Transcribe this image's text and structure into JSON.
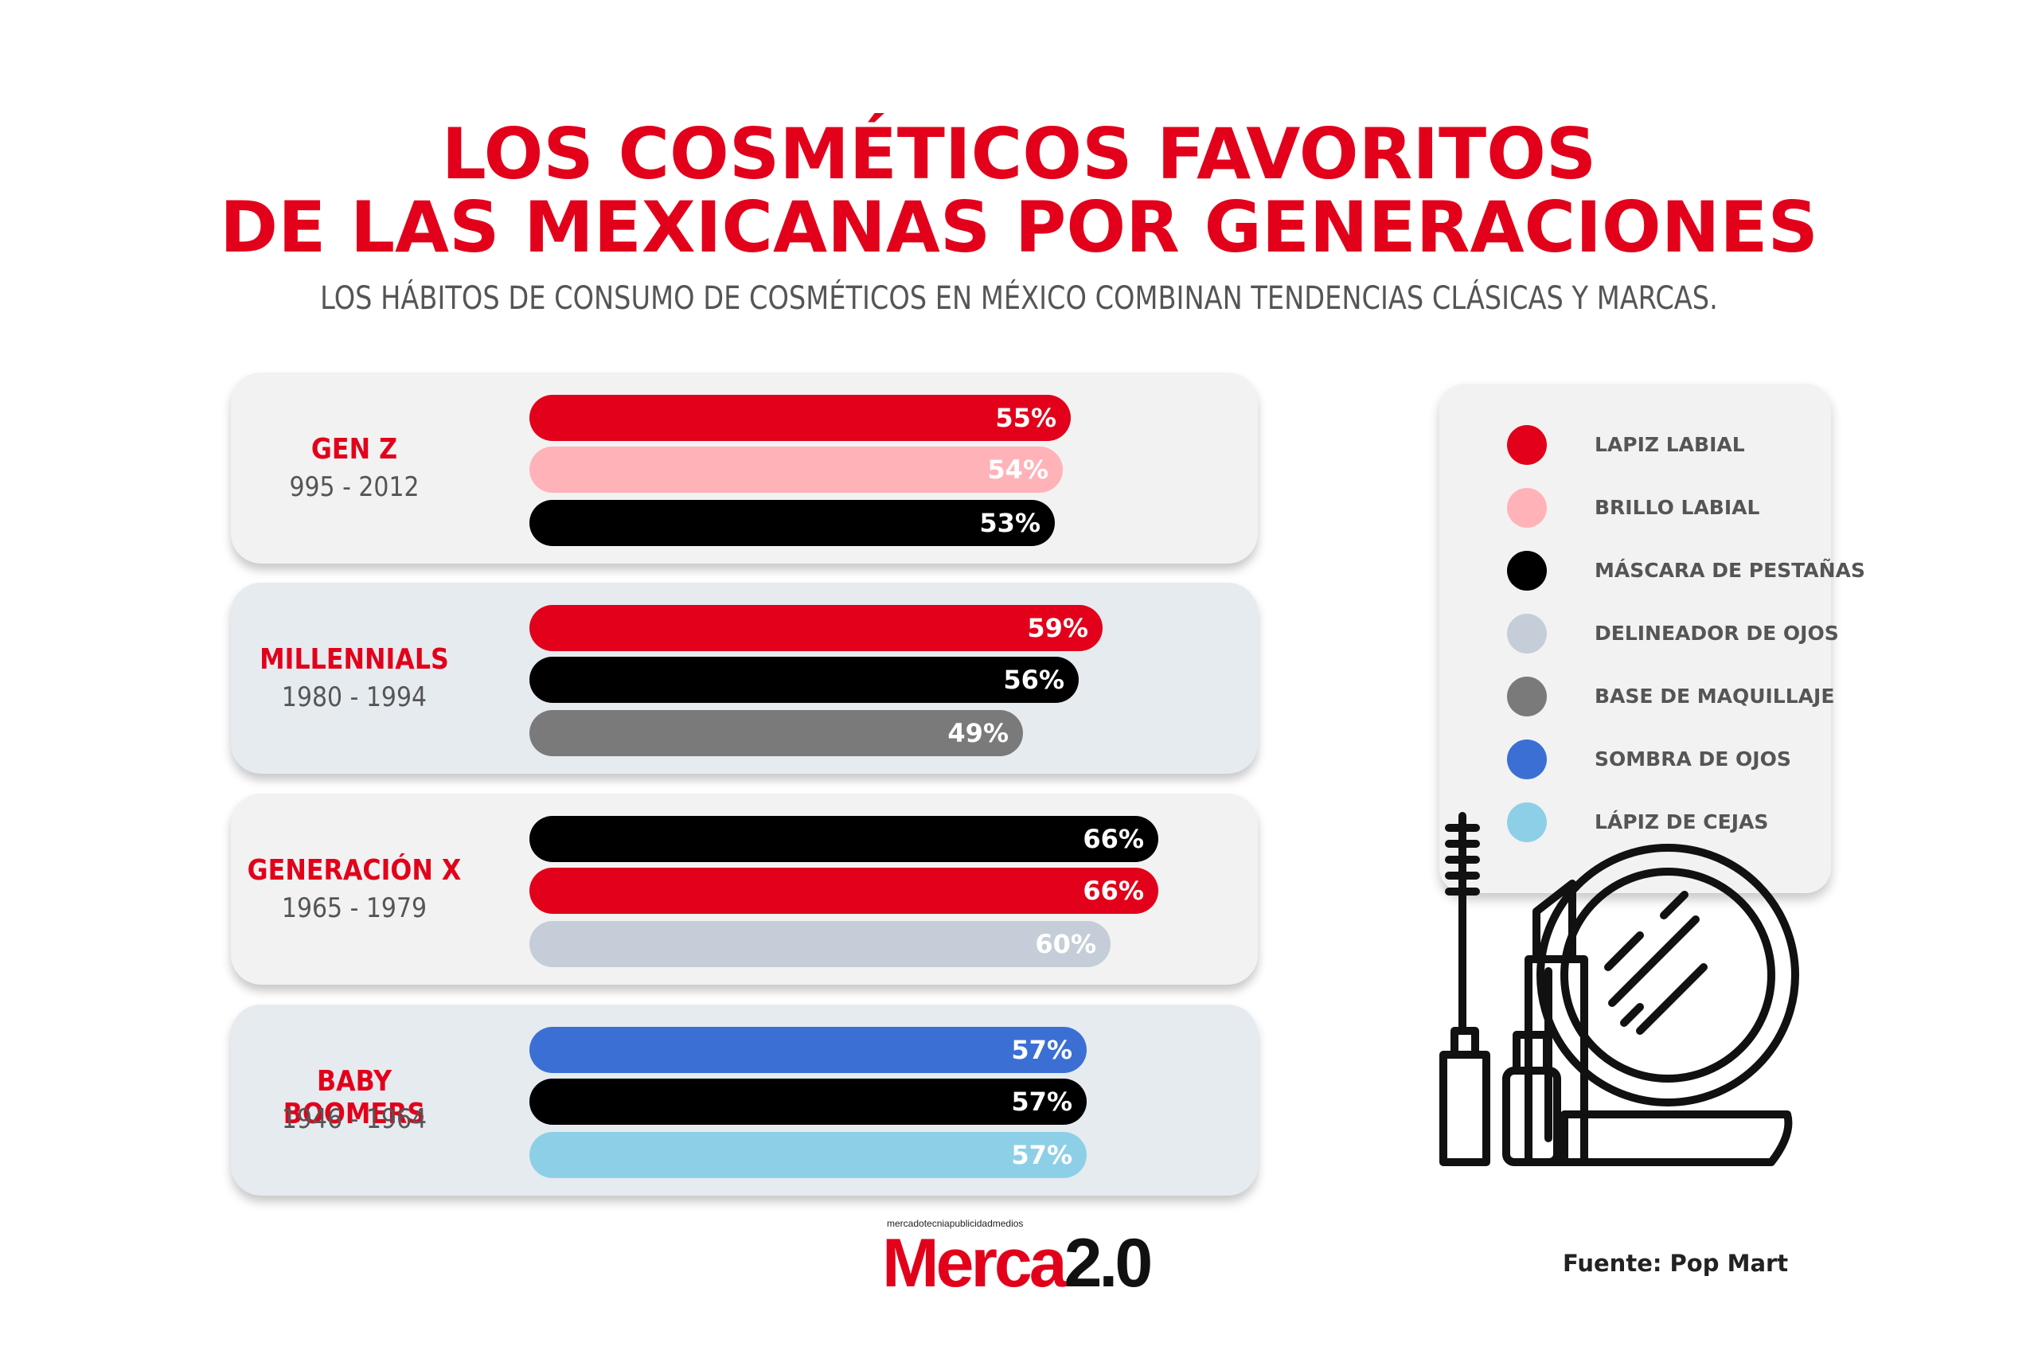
{
  "title_line1": "LOS COSMÉTICOS FAVORITOS",
  "title_line2": "DE LAS MEXICANAS POR GENERACIONES",
  "subtitle": "LOS HÁBITOS DE CONSUMO DE COSMÉTICOS EN MÉXICO COMBINAN TENDENCIAS CLÁSICAS Y MARCAS.",
  "colors": {
    "accent": "#e2001a",
    "lapiz_labial": "#e2001a",
    "brillo_labial": "#ffb3b8",
    "mascara": "#000000",
    "delineador": "#c5ced8",
    "base": "#7a7a7a",
    "sombra": "#3b6fd4",
    "cejas": "#8ecfe8"
  },
  "legend": [
    {
      "label": "LAPIZ LABIAL",
      "color": "#e2001a"
    },
    {
      "label": "BRILLO LABIAL",
      "color": "#ffb3b8"
    },
    {
      "label": "MÁSCARA DE PESTAÑAS",
      "color": "#000000"
    },
    {
      "label": "DELINEADOR DE OJOS",
      "color": "#c5ced8"
    },
    {
      "label": "BASE DE MAQUILLAJE",
      "color": "#7a7a7a"
    },
    {
      "label": "SOMBRA DE OJOS",
      "color": "#3b6fd4"
    },
    {
      "label": "LÁPIZ DE CEJAS",
      "color": "#8ecfe8"
    }
  ],
  "chart_data": {
    "type": "bar",
    "title": "LOS COSMÉTICOS FAVORITOS DE LAS MEXICANAS POR GENERACIONES",
    "subtitle": "LOS HÁBITOS DE CONSUMO DE COSMÉTICOS EN MÉXICO COMBINAN TENDENCIAS CLÁSICAS Y MARCAS.",
    "orientation": "horizontal",
    "unit": "%",
    "legend_position": "right",
    "groups": [
      {
        "name": "GEN Z",
        "years": "995 - 2012",
        "bars": [
          {
            "product": "LAPIZ LABIAL",
            "value": 55,
            "label": "55%",
            "color": "#e2001a"
          },
          {
            "product": "BRILLO LABIAL",
            "value": 54,
            "label": "54%",
            "color": "#ffb3b8"
          },
          {
            "product": "MÁSCARA DE PESTAÑAS",
            "value": 53,
            "label": "53%",
            "color": "#000000"
          }
        ]
      },
      {
        "name": "MILLENNIALS",
        "years": "1980 - 1994",
        "bars": [
          {
            "product": "LAPIZ LABIAL",
            "value": 59,
            "label": "59%",
            "color": "#e2001a"
          },
          {
            "product": "MÁSCARA DE PESTAÑAS",
            "value": 56,
            "label": "56%",
            "color": "#000000"
          },
          {
            "product": "BASE DE MAQUILLAJE",
            "value": 49,
            "label": "49%",
            "color": "#7a7a7a"
          }
        ]
      },
      {
        "name": "GENERACIÓN X",
        "years": "1965 - 1979",
        "bars": [
          {
            "product": "MÁSCARA DE PESTAÑAS",
            "value": 66,
            "label": "66%",
            "color": "#000000"
          },
          {
            "product": "LAPIZ LABIAL",
            "value": 66,
            "label": "66%",
            "color": "#e2001a"
          },
          {
            "product": "DELINEADOR DE OJOS",
            "value": 60,
            "label": "60%",
            "color": "#c5ced8"
          }
        ]
      },
      {
        "name": "BABY BOOMERS",
        "years": "1946 - 1964",
        "bars": [
          {
            "product": "SOMBRA DE OJOS",
            "value": 57,
            "label": "57%",
            "color": "#3b6fd4"
          },
          {
            "product": "MÁSCARA DE PESTAÑAS",
            "value": 57,
            "label": "57%",
            "color": "#000000"
          },
          {
            "product": "LÁPIZ DE CEJAS",
            "value": 57,
            "label": "57%",
            "color": "#8ecfe8"
          }
        ]
      }
    ]
  },
  "logo": {
    "tagline": "mercadotecniapublicidadmedios",
    "text_red": "Merca",
    "text_black": "2.0"
  },
  "source": "Fuente: Pop Mart"
}
